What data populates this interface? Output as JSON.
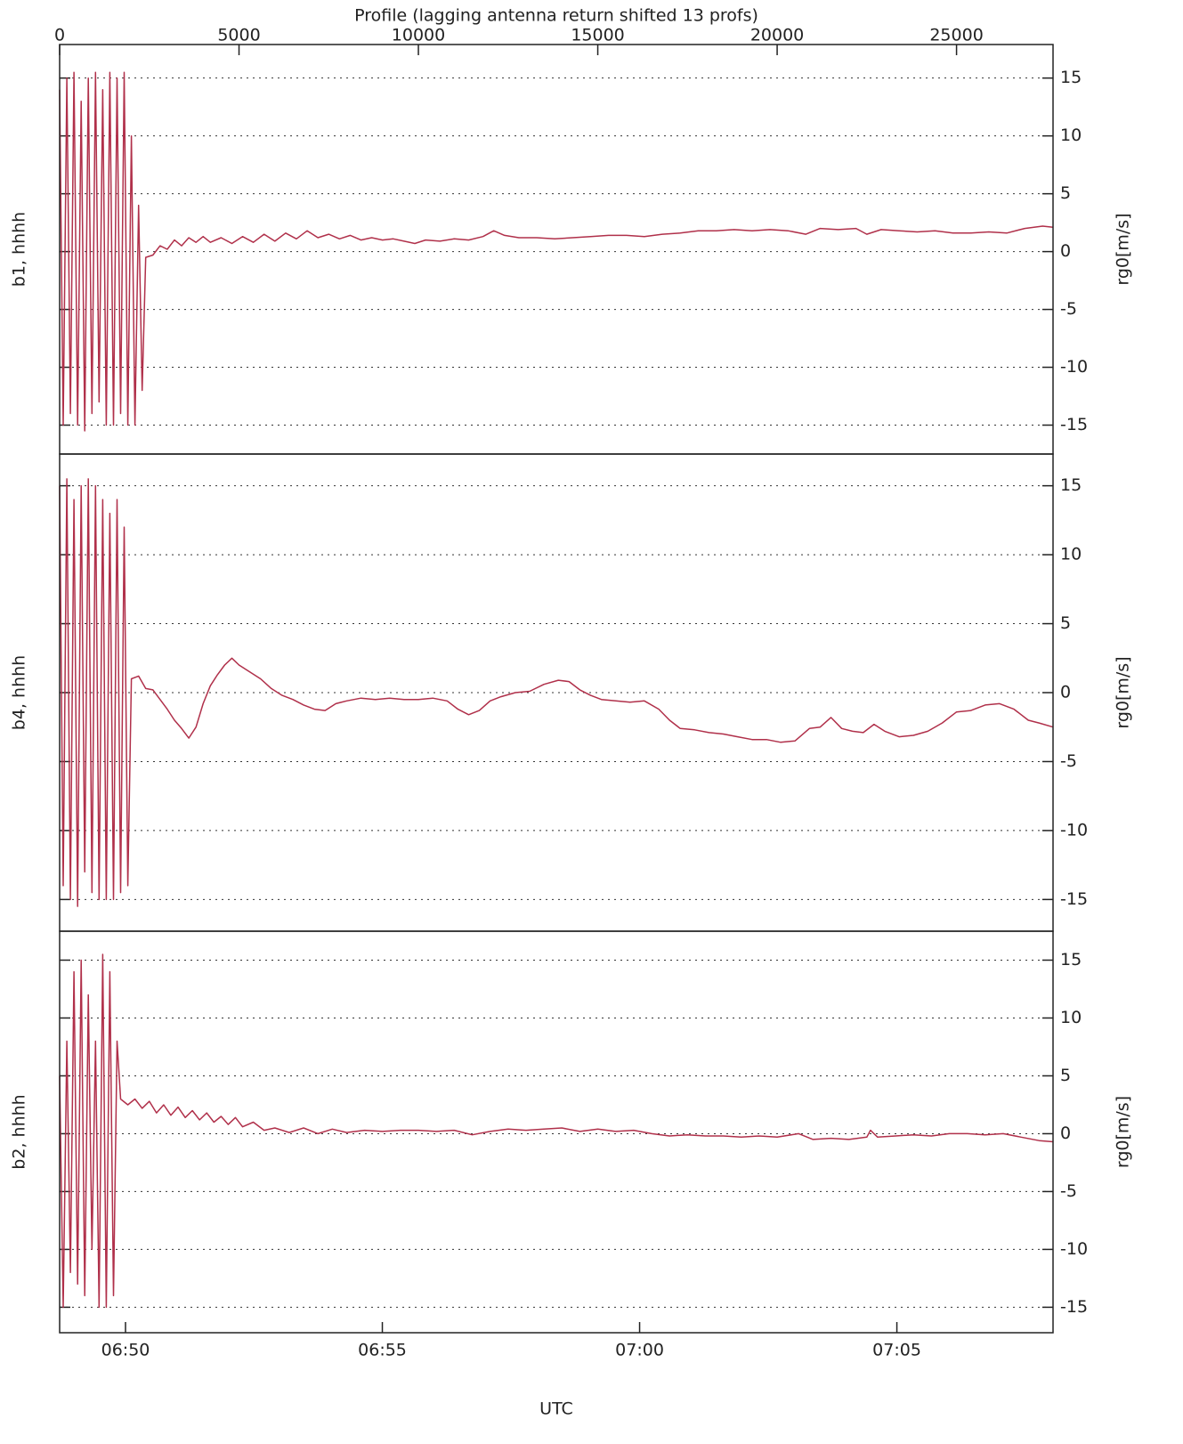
{
  "chart_data": [
    {
      "type": "line",
      "panel_label": "b1, hhhh",
      "ylabel": "rg0[m/s]",
      "x2label": "Profile (lagging antenna return shifted 13 profs)",
      "x2ticks": [
        0,
        5000,
        10000,
        15000,
        20000,
        25000
      ],
      "xlim": [
        0,
        27690
      ],
      "ylim": [
        -17.5,
        17.9
      ],
      "yticks": [
        -15,
        -10,
        -5,
        0,
        5,
        10,
        15
      ],
      "grid": true,
      "color": "#b0304a",
      "x": [
        0,
        100,
        200,
        300,
        400,
        500,
        600,
        700,
        800,
        900,
        1000,
        1100,
        1200,
        1300,
        1400,
        1500,
        1600,
        1700,
        1800,
        1900,
        2000,
        2100,
        2200,
        2300,
        2400,
        2600,
        2800,
        3000,
        3200,
        3400,
        3600,
        3800,
        4000,
        4200,
        4500,
        4800,
        5100,
        5400,
        5700,
        6000,
        6300,
        6600,
        6900,
        7200,
        7500,
        7800,
        8100,
        8400,
        8700,
        9000,
        9300,
        9600,
        9900,
        10200,
        10600,
        11000,
        11400,
        11800,
        12100,
        12400,
        12800,
        13300,
        13800,
        14300,
        14800,
        15300,
        15800,
        16300,
        16800,
        17300,
        17800,
        18300,
        18800,
        19300,
        19800,
        20300,
        20800,
        21200,
        21700,
        22200,
        22500,
        22900,
        23400,
        23900,
        24400,
        24900,
        25400,
        25900,
        26400,
        26900,
        27400,
        27690
      ],
      "values": [
        14,
        -15,
        15,
        -14,
        15.5,
        -15,
        13,
        -15.5,
        15,
        -14,
        15.5,
        -13,
        14,
        -15,
        15.5,
        -15,
        15,
        -14,
        15.5,
        -15,
        10,
        -15,
        4,
        -12,
        -0.5,
        -0.3,
        0.5,
        0.2,
        1.0,
        0.5,
        1.2,
        0.8,
        1.3,
        0.8,
        1.2,
        0.7,
        1.3,
        0.8,
        1.5,
        0.9,
        1.6,
        1.1,
        1.8,
        1.2,
        1.5,
        1.1,
        1.4,
        1.0,
        1.2,
        1.0,
        1.1,
        0.9,
        0.7,
        1.0,
        0.9,
        1.1,
        1.0,
        1.3,
        1.8,
        1.4,
        1.2,
        1.2,
        1.1,
        1.2,
        1.3,
        1.4,
        1.4,
        1.3,
        1.5,
        1.6,
        1.8,
        1.8,
        1.9,
        1.8,
        1.9,
        1.8,
        1.5,
        2.0,
        1.9,
        2.0,
        1.5,
        1.9,
        1.8,
        1.7,
        1.8,
        1.6,
        1.6,
        1.7,
        1.6,
        2.0,
        2.2,
        2.1
      ]
    },
    {
      "type": "line",
      "panel_label": "b4, hhhh",
      "ylabel": "rg0[m/s]",
      "xlim": [
        0,
        27690
      ],
      "ylim": [
        -17.3,
        17.3
      ],
      "yticks": [
        -15,
        -10,
        -5,
        0,
        5,
        10,
        15
      ],
      "grid": true,
      "color": "#b0304a",
      "x": [
        0,
        100,
        200,
        300,
        400,
        500,
        600,
        700,
        800,
        900,
        1000,
        1100,
        1200,
        1300,
        1400,
        1500,
        1600,
        1700,
        1800,
        1900,
        2000,
        2200,
        2400,
        2600,
        2800,
        3000,
        3200,
        3400,
        3600,
        3800,
        4000,
        4200,
        4400,
        4600,
        4800,
        5000,
        5300,
        5600,
        5900,
        6200,
        6500,
        6800,
        7100,
        7400,
        7700,
        8000,
        8400,
        8800,
        9200,
        9600,
        10000,
        10400,
        10800,
        11100,
        11400,
        11700,
        12000,
        12300,
        12700,
        13100,
        13500,
        13900,
        14200,
        14500,
        14800,
        15100,
        15500,
        15900,
        16300,
        16700,
        17000,
        17300,
        17700,
        18100,
        18500,
        18900,
        19300,
        19700,
        20100,
        20500,
        20900,
        21200,
        21500,
        21800,
        22100,
        22400,
        22700,
        23000,
        23400,
        23800,
        24200,
        24600,
        25000,
        25400,
        25800,
        26200,
        26600,
        27000,
        27300,
        27690
      ],
      "values": [
        15,
        -14,
        15.5,
        -15,
        14,
        -15.5,
        15,
        -13,
        15.5,
        -14.5,
        15,
        -15,
        14,
        -15,
        13,
        -15,
        14,
        -14.5,
        12,
        -14,
        1.0,
        1.2,
        0.3,
        0.2,
        -0.5,
        -1.2,
        -2.0,
        -2.6,
        -3.3,
        -2.5,
        -0.8,
        0.5,
        1.3,
        2.0,
        2.5,
        2.0,
        1.5,
        1.0,
        0.3,
        -0.2,
        -0.5,
        -0.9,
        -1.2,
        -1.3,
        -0.8,
        -0.6,
        -0.4,
        -0.5,
        -0.4,
        -0.5,
        -0.5,
        -0.4,
        -0.6,
        -1.2,
        -1.6,
        -1.3,
        -0.6,
        -0.3,
        0.0,
        0.1,
        0.6,
        0.9,
        0.8,
        0.2,
        -0.2,
        -0.5,
        -0.6,
        -0.7,
        -0.6,
        -1.2,
        -2.0,
        -2.6,
        -2.7,
        -2.9,
        -3.0,
        -3.2,
        -3.4,
        -3.4,
        -3.6,
        -3.5,
        -2.6,
        -2.5,
        -1.8,
        -2.6,
        -2.8,
        -2.9,
        -2.3,
        -2.8,
        -3.2,
        -3.1,
        -2.8,
        -2.2,
        -1.4,
        -1.3,
        -0.9,
        -0.8,
        -1.2,
        -2.0,
        -2.2,
        -2.5
      ]
    },
    {
      "type": "line",
      "panel_label": "b2, hhhh",
      "ylabel": "rg0[m/s]",
      "xlabel": "UTC",
      "xticks": [
        {
          "value": 1836,
          "label": "06:50"
        },
        {
          "value": 8995,
          "label": "06:55"
        },
        {
          "value": 16166,
          "label": "07:00"
        },
        {
          "value": 23337,
          "label": "07:05"
        }
      ],
      "xlim": [
        0,
        27690
      ],
      "ylim": [
        -17.2,
        17.5
      ],
      "yticks": [
        -15,
        -10,
        -5,
        0,
        5,
        10,
        15
      ],
      "grid": true,
      "color": "#b0304a",
      "x": [
        0,
        100,
        200,
        300,
        400,
        500,
        600,
        700,
        800,
        900,
        1000,
        1100,
        1200,
        1300,
        1400,
        1500,
        1600,
        1700,
        1900,
        2100,
        2300,
        2500,
        2700,
        2900,
        3100,
        3300,
        3500,
        3700,
        3900,
        4100,
        4300,
        4500,
        4700,
        4900,
        5100,
        5400,
        5700,
        6000,
        6400,
        6800,
        7200,
        7600,
        8000,
        8500,
        9000,
        9500,
        10000,
        10500,
        11000,
        11500,
        12000,
        12500,
        13000,
        13500,
        14000,
        14500,
        15000,
        15500,
        16000,
        16500,
        17000,
        17500,
        18000,
        18500,
        19000,
        19500,
        20000,
        20600,
        21000,
        21500,
        22000,
        22500,
        22600,
        22800,
        23300,
        23800,
        24300,
        24800,
        25300,
        25800,
        26300,
        26800,
        27300,
        27690
      ],
      "values": [
        5,
        -15,
        8,
        -12,
        14,
        -13,
        15,
        -14,
        12,
        -10,
        8,
        -15,
        15.5,
        -15,
        14,
        -14,
        8,
        3.0,
        2.5,
        3.0,
        2.2,
        2.8,
        1.8,
        2.5,
        1.6,
        2.3,
        1.4,
        2.0,
        1.2,
        1.8,
        1.0,
        1.5,
        0.8,
        1.4,
        0.6,
        1.0,
        0.3,
        0.5,
        0.1,
        0.5,
        0.0,
        0.4,
        0.1,
        0.3,
        0.2,
        0.3,
        0.3,
        0.2,
        0.3,
        -0.1,
        0.2,
        0.4,
        0.3,
        0.4,
        0.5,
        0.2,
        0.4,
        0.2,
        0.3,
        0.0,
        -0.2,
        -0.1,
        -0.2,
        -0.2,
        -0.3,
        -0.2,
        -0.3,
        0.0,
        -0.5,
        -0.4,
        -0.5,
        -0.3,
        0.3,
        -0.3,
        -0.2,
        -0.1,
        -0.2,
        0.0,
        0.0,
        -0.1,
        0.0,
        -0.3,
        -0.6,
        -0.7
      ]
    }
  ]
}
